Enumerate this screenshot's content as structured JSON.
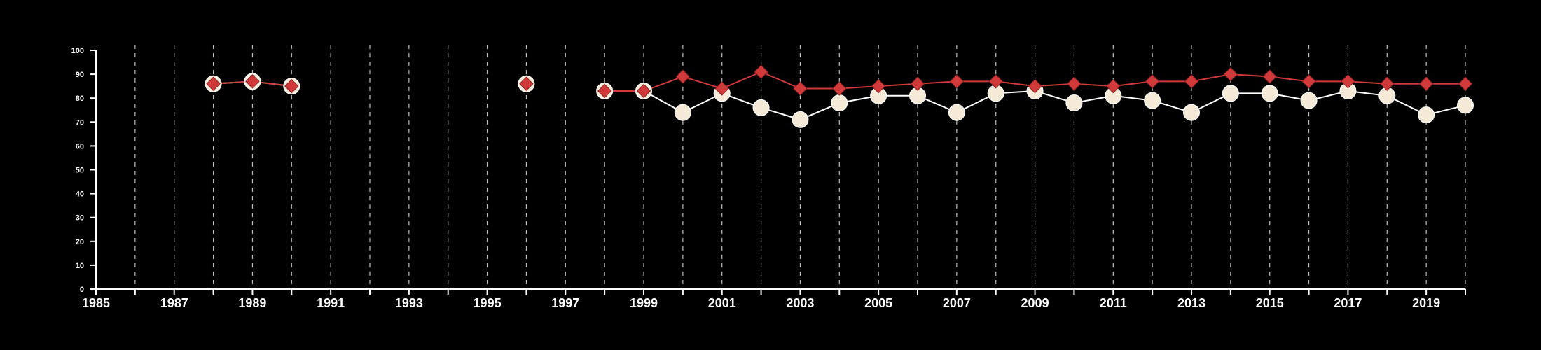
{
  "chart_data": {
    "type": "line",
    "xlim": [
      1985,
      2020
    ],
    "ylim": [
      0,
      100
    ],
    "x_ticks_labeled": [
      1985,
      1987,
      1989,
      1991,
      1993,
      1995,
      1997,
      1999,
      2001,
      2003,
      2005,
      2007,
      2009,
      2011,
      2013,
      2015,
      2017,
      2019
    ],
    "x_ticks_minor": [
      1986,
      1988,
      1990,
      1992,
      1994,
      1996,
      1998,
      2000,
      2002,
      2004,
      2006,
      2008,
      2010,
      2012,
      2014,
      2016,
      2018,
      2020
    ],
    "y_ticks": [
      0,
      10,
      20,
      30,
      40,
      50,
      60,
      70,
      80,
      90,
      100
    ],
    "grid": "vertical dashed lines at each year",
    "legend": "none",
    "series": [
      {
        "marker": "diamond",
        "color": "#d03a3a",
        "x": [
          1988,
          1989,
          1990,
          1996,
          1998,
          1999,
          2000,
          2001,
          2002,
          2003,
          2004,
          2005,
          2006,
          2007,
          2008,
          2009,
          2010,
          2011,
          2012,
          2013,
          2014,
          2015,
          2016,
          2017,
          2018,
          2019,
          2020
        ],
        "values": [
          86,
          87,
          85,
          86,
          83,
          83,
          89,
          84,
          91,
          84,
          84,
          85,
          86,
          87,
          87,
          85,
          86,
          85,
          87,
          87,
          90,
          89,
          87,
          87,
          86,
          86,
          86
        ]
      },
      {
        "marker": "circle",
        "color": "#f5ead8",
        "x": [
          1988,
          1989,
          1990,
          1996,
          1998,
          1999,
          2000,
          2001,
          2002,
          2003,
          2004,
          2005,
          2006,
          2007,
          2008,
          2009,
          2010,
          2011,
          2012,
          2013,
          2014,
          2015,
          2016,
          2017,
          2018,
          2019,
          2020
        ],
        "values": [
          86,
          87,
          85,
          86,
          83,
          83,
          74,
          82,
          76,
          71,
          78,
          81,
          81,
          74,
          82,
          83,
          78,
          81,
          79,
          74,
          82,
          82,
          79,
          83,
          81,
          73,
          77
        ]
      }
    ]
  }
}
